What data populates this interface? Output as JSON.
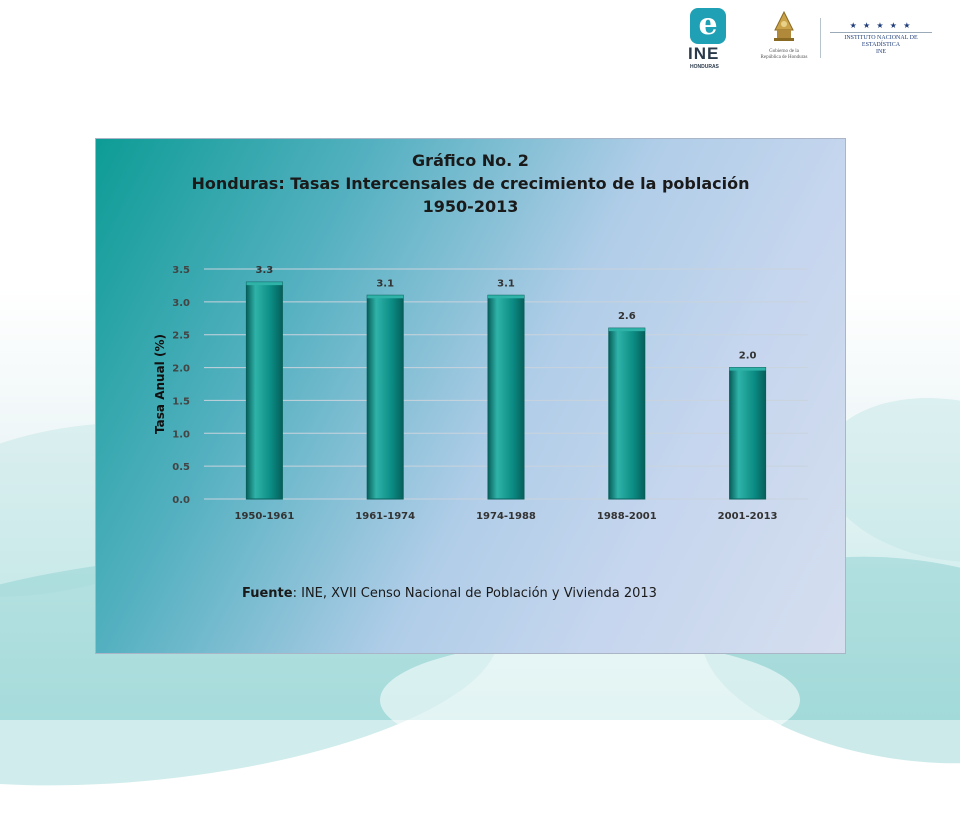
{
  "header": {
    "ine_logo": {
      "letter": "e",
      "word": "INE",
      "sub": "HONDURAS"
    },
    "gov_logo": {
      "line1": "Gobierno de la",
      "line2": "República de Honduras"
    },
    "institute_logo": {
      "stars": "★ ★ ★ ★ ★",
      "line1": "INSTITUTO NACIONAL DE",
      "line2": "ESTADÍSTICA",
      "line3": "INE"
    }
  },
  "chart_title": {
    "line1": "Gráfico No. 2",
    "line2": "Honduras: Tasas Intercensales de crecimiento de la población",
    "line3": "1950-2013"
  },
  "source": {
    "label": "Fuente",
    "text": ": INE, XVII Censo Nacional de Población y Vivienda 2013"
  },
  "colors": {
    "bar": "#0a8a82",
    "bar_dark": "#075f5a",
    "bar_light": "#2fb3a9",
    "grid": "#c9d3dd"
  },
  "chart_data": {
    "type": "bar",
    "categories": [
      "1950-1961",
      "1961-1974",
      "1974-1988",
      "1988-2001",
      "2001-2013"
    ],
    "values": [
      3.3,
      3.1,
      3.1,
      2.6,
      2.0
    ],
    "data_labels": [
      "3.3",
      "3.1",
      "3.1",
      "2.6",
      "2.0"
    ],
    "ylabel": "Tasa Anual  (%)",
    "ylim": [
      0,
      3.5
    ],
    "yticks": [
      "0.0",
      "0.5",
      "1.0",
      "1.5",
      "2.0",
      "2.5",
      "3.0",
      "3.5"
    ],
    "grid": true
  }
}
